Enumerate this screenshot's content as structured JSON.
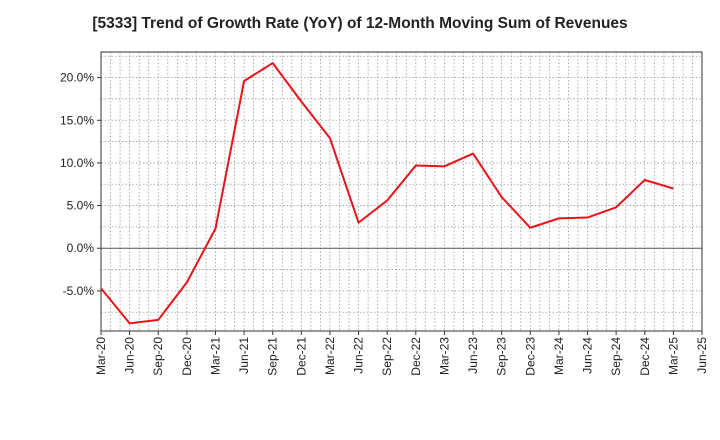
{
  "chart_data": {
    "type": "line",
    "title": "[5333]  Trend of Growth Rate (YoY) of 12-Month Moving Sum of Revenues",
    "xlabel": "",
    "ylabel": "",
    "x_tick_labels": [
      "Mar-20",
      "Jun-20",
      "Sep-20",
      "Dec-20",
      "Mar-21",
      "Jun-21",
      "Sep-21",
      "Dec-21",
      "Mar-22",
      "Jun-22",
      "Sep-22",
      "Dec-22",
      "Mar-23",
      "Jun-23",
      "Sep-23",
      "Dec-23",
      "Mar-24",
      "Jun-24",
      "Sep-24",
      "Dec-24",
      "Mar-25",
      "Jun-25"
    ],
    "y_tick_labels": [
      "20.0%",
      "15.0%",
      "10.0%",
      "5.0%",
      "0.0%",
      "-5.0%"
    ],
    "y_ticks": [
      20,
      15,
      10,
      5,
      0,
      -5
    ],
    "ylim": [
      -9.7,
      23.0
    ],
    "grid": true,
    "series": [
      {
        "color": "#e8141b",
        "x": [
          "Mar-20",
          "Jun-20",
          "Sep-20",
          "Dec-20",
          "Mar-21",
          "Jun-21",
          "Sep-21",
          "Dec-21",
          "Mar-22",
          "Jun-22",
          "Sep-22",
          "Dec-22",
          "Mar-23",
          "Jun-23",
          "Sep-23",
          "Dec-23",
          "Mar-24",
          "Jun-24",
          "Sep-24",
          "Dec-24",
          "Mar-25"
        ],
        "values": [
          -4.7,
          -8.8,
          -8.4,
          -4.0,
          2.3,
          19.6,
          21.7,
          17.2,
          12.9,
          3.0,
          5.6,
          9.7,
          9.6,
          11.1,
          6.0,
          2.4,
          3.5,
          3.6,
          4.8,
          8.0,
          7.0
        ]
      }
    ]
  }
}
